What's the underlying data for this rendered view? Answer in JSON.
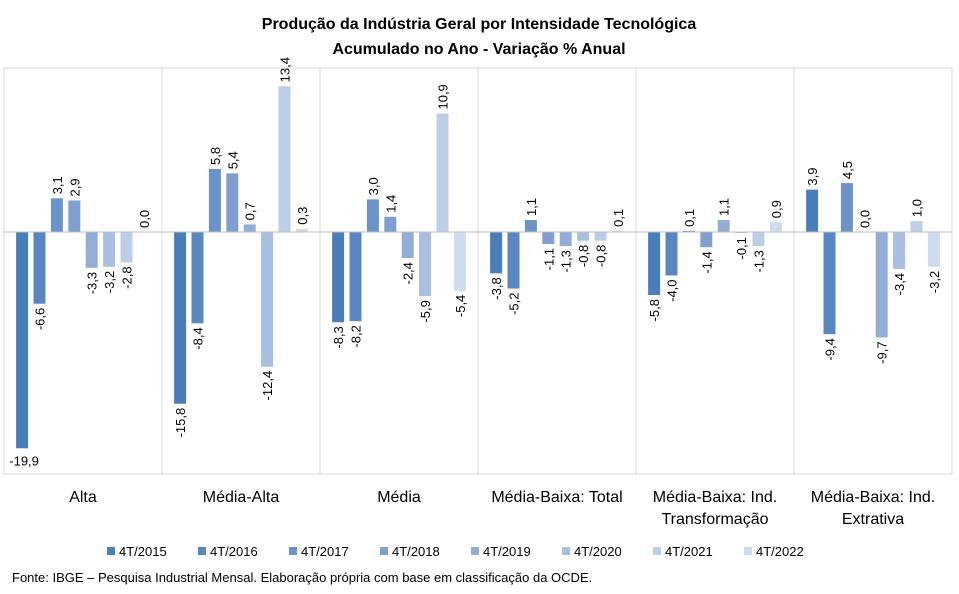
{
  "chart_data": {
    "type": "bar",
    "title": "Produção da Indústria Geral por Intensidade Tecnológica",
    "subtitle": "Acumulado no Ano - Variação % Anual",
    "categories": [
      [
        "Alta"
      ],
      [
        "Média-Alta"
      ],
      [
        "Média"
      ],
      [
        "Média-Baixa: Total"
      ],
      [
        "Média-Baixa: Ind.",
        "Transformação"
      ],
      [
        "Média-Baixa: Ind.",
        "Extrativa"
      ]
    ],
    "series": [
      {
        "name": "4T/2015",
        "values": [
          -19.9,
          -15.8,
          -8.3,
          -3.8,
          -5.8,
          3.9
        ],
        "labels": [
          "-19,9",
          "-15,8",
          "-8,3",
          "-3,8",
          "-5,8",
          "3,9"
        ],
        "color": "#4a7ebb"
      },
      {
        "name": "4T/2016",
        "values": [
          -6.6,
          -8.4,
          -8.2,
          -5.2,
          -4.0,
          -9.4
        ],
        "labels": [
          "-6,6",
          "-8,4",
          "-8,2",
          "-5,2",
          "-4,0",
          "-9,4"
        ],
        "color": "#5a87c2"
      },
      {
        "name": "4T/2017",
        "values": [
          3.1,
          5.8,
          3.0,
          1.1,
          0.1,
          4.5
        ],
        "labels": [
          "3,1",
          "5,8",
          "3,0",
          "1,1",
          "0,1",
          "4,5"
        ],
        "color": "#6c93c9"
      },
      {
        "name": "4T/2018",
        "values": [
          2.9,
          5.4,
          1.4,
          -1.1,
          -1.4,
          0.0
        ],
        "labels": [
          "2,9",
          "5,4",
          "1,4",
          "-1,1",
          "-1,4",
          "0,0"
        ],
        "color": "#7f9fcf"
      },
      {
        "name": "4T/2019",
        "values": [
          -3.3,
          0.7,
          -2.4,
          -1.3,
          1.1,
          -9.7
        ],
        "labels": [
          "-3,3",
          "0,7",
          "-2,4",
          "-1,3",
          "1,1",
          "-9,7"
        ],
        "color": "#93aed6"
      },
      {
        "name": "4T/2020",
        "values": [
          -3.2,
          -12.4,
          -5.9,
          -0.8,
          -0.1,
          -3.4
        ],
        "labels": [
          "-3,2",
          "-12,4",
          "-5,9",
          "-0,8",
          "-0,1",
          "-3,4"
        ],
        "color": "#a8bfdf"
      },
      {
        "name": "4T/2021",
        "values": [
          -2.8,
          13.4,
          10.9,
          -0.8,
          -1.3,
          1.0
        ],
        "labels": [
          "-2,8",
          "13,4",
          "10,9",
          "-0,8",
          "-1,3",
          "1,0"
        ],
        "color": "#bccde7"
      },
      {
        "name": "4T/2022",
        "values": [
          0.0,
          0.3,
          -5.4,
          0.1,
          0.9,
          -3.2
        ],
        "labels": [
          "0,0",
          "0,3",
          "-5,4",
          "0,1",
          "0,9",
          "-3,2"
        ],
        "color": "#cfdbef"
      }
    ],
    "ylim": [
      -22,
      15
    ],
    "grid": false,
    "legend_position": "bottom"
  },
  "source": "Fonte: IBGE – Pesquisa Industrial Mensal. Elaboração própria com base em classificação da OCDE."
}
